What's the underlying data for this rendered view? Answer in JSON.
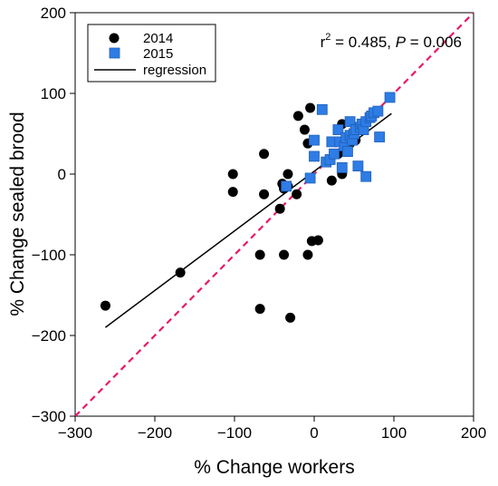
{
  "chart_data": {
    "type": "scatter",
    "xlabel": "% Change workers",
    "ylabel": "% Change sealed brood",
    "xlim": [
      -300,
      200
    ],
    "ylim": [
      -300,
      200
    ],
    "xticks": [
      -300,
      -200,
      -100,
      0,
      100,
      200
    ],
    "yticks": [
      -300,
      -200,
      -100,
      0,
      100,
      200
    ],
    "xtick_labels": [
      "−300",
      "−200",
      "−100",
      "0",
      "100",
      "200"
    ],
    "ytick_labels": [
      "−300",
      "−200",
      "−100",
      "0",
      "100",
      "200"
    ],
    "grid": false,
    "legend_position": "top-left",
    "stats": {
      "r2_prefix": "r",
      "r2_sup": "2",
      "r2_value": " = 0.485, ",
      "p_label": "P",
      "p_value": " = 0.006"
    },
    "series": [
      {
        "name": "2014",
        "marker": "circle",
        "color": "#000000",
        "points": [
          [
            -262,
            -163
          ],
          [
            -168,
            -122
          ],
          [
            -102,
            0
          ],
          [
            -102,
            -22
          ],
          [
            -68,
            -167
          ],
          [
            -68,
            -100
          ],
          [
            -63,
            -25
          ],
          [
            -63,
            25
          ],
          [
            -43,
            -43
          ],
          [
            -40,
            -12
          ],
          [
            -38,
            -18
          ],
          [
            -38,
            -100
          ],
          [
            -33,
            -15
          ],
          [
            -33,
            0
          ],
          [
            -30,
            -178
          ],
          [
            -22,
            -25
          ],
          [
            -20,
            72
          ],
          [
            -12,
            55
          ],
          [
            -8,
            38
          ],
          [
            -8,
            -100
          ],
          [
            -5,
            82
          ],
          [
            -3,
            -83
          ],
          [
            5,
            -82
          ],
          [
            22,
            -8
          ],
          [
            30,
            25
          ],
          [
            35,
            0
          ],
          [
            35,
            5
          ],
          [
            35,
            62
          ],
          [
            40,
            32
          ],
          [
            45,
            38
          ],
          [
            48,
            50
          ],
          [
            52,
            42
          ]
        ]
      },
      {
        "name": "2015",
        "marker": "square",
        "color": "#2e7ce5",
        "points": [
          [
            -35,
            -15
          ],
          [
            -5,
            -5
          ],
          [
            0,
            42
          ],
          [
            0,
            22
          ],
          [
            10,
            80
          ],
          [
            15,
            15
          ],
          [
            20,
            18
          ],
          [
            22,
            40
          ],
          [
            25,
            25
          ],
          [
            30,
            55
          ],
          [
            32,
            40
          ],
          [
            35,
            8
          ],
          [
            38,
            35
          ],
          [
            40,
            45
          ],
          [
            42,
            28
          ],
          [
            45,
            65
          ],
          [
            45,
            48
          ],
          [
            48,
            42
          ],
          [
            50,
            50
          ],
          [
            52,
            55
          ],
          [
            55,
            10
          ],
          [
            58,
            58
          ],
          [
            60,
            62
          ],
          [
            62,
            55
          ],
          [
            65,
            65
          ],
          [
            65,
            -3
          ],
          [
            70,
            70
          ],
          [
            72,
            72
          ],
          [
            75,
            76
          ],
          [
            80,
            78
          ],
          [
            82,
            46
          ],
          [
            95,
            95
          ]
        ]
      }
    ],
    "regression": {
      "name": "regression",
      "color": "#000000",
      "x": [
        -262,
        97
      ],
      "y": [
        -190,
        75
      ]
    },
    "identity_line": {
      "color": "#e8196a",
      "x": [
        -300,
        200
      ],
      "y": [
        -300,
        200
      ]
    }
  }
}
